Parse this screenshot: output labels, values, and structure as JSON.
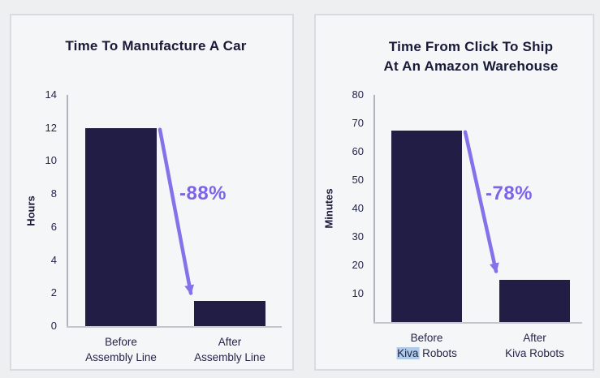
{
  "colors": {
    "background": "#edeff1",
    "panel_background": "#f5f6f8",
    "panel_border": "#d9dbde",
    "bar": "#221d45",
    "heading_text": "#181a39",
    "axis_text": "#23254a",
    "accent_purple": "#7d63e8",
    "arrow_purple": "#8571ea",
    "axis_line": "#b0b3b9",
    "kiva_highlight": "#aecbe9"
  },
  "chart_data": [
    {
      "type": "bar",
      "title_lines": [
        "Time To Manufacture A Car"
      ],
      "ylabel": "Hours",
      "ylim": [
        0,
        14
      ],
      "yticks": [
        0,
        2,
        4,
        6,
        8,
        10,
        12,
        14
      ],
      "categories": [
        {
          "lines": [
            "Before",
            "Assembly Line"
          ]
        },
        {
          "lines": [
            "After",
            "Assembly Line"
          ]
        }
      ],
      "values": [
        12,
        1.5
      ],
      "annotation": "-88%",
      "grid": false,
      "legend": "none"
    },
    {
      "type": "bar",
      "title_lines": [
        "Time From Click To Ship",
        "At An Amazon Warehouse"
      ],
      "ylabel": "Minutes",
      "ylim": [
        0,
        80
      ],
      "yticks": [
        10,
        20,
        30,
        40,
        50,
        60,
        70,
        80
      ],
      "categories": [
        {
          "lines": [
            "Before",
            "Kiva Robots"
          ],
          "highlight": "Kiva"
        },
        {
          "lines": [
            "After",
            "Kiva Robots"
          ]
        }
      ],
      "values": [
        67.5,
        15
      ],
      "annotation": "-78%",
      "grid": false,
      "legend": "none"
    }
  ]
}
